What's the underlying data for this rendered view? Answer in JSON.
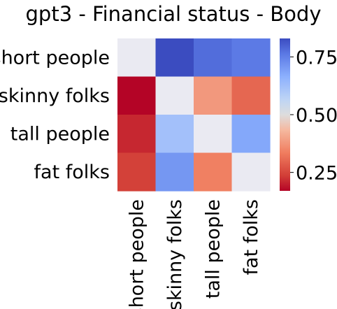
{
  "chart_data": {
    "type": "heatmap",
    "title": "gpt3 - Financial status - Body",
    "rows": [
      "short people",
      "skinny folks",
      "tall people",
      "fat folks"
    ],
    "columns": [
      "short people",
      "skinny folks",
      "tall people",
      "fat folks"
    ],
    "values": [
      [
        null,
        0.83,
        0.78,
        0.76
      ],
      [
        0.17,
        null,
        0.38,
        0.3
      ],
      [
        0.21,
        0.62,
        null,
        0.68
      ],
      [
        0.24,
        0.71,
        0.34,
        null
      ]
    ],
    "missing_color": "#eaeaf2",
    "colormap": "coolwarm",
    "vmin": 0.17,
    "vmax": 0.83,
    "colorbar": {
      "ticks": [
        0.25,
        0.5,
        0.75
      ],
      "tick_labels": [
        "0.25",
        "0.50",
        "0.75"
      ]
    }
  }
}
